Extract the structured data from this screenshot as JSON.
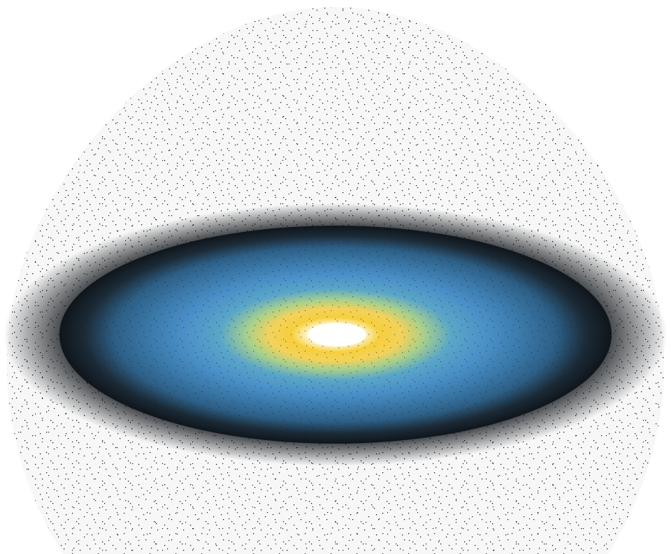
{
  "image": {
    "subject": "galaxy-disk-heatmap",
    "colors": {
      "background": "#ffffff",
      "dome_fill": "#f7f7f7",
      "speckle": "#1a1a1a",
      "outer_halo": "#0d1116",
      "disk_dark": "#1b2a36",
      "disk_mid": "#2d5f86",
      "disk_blue": "#4a90c8",
      "ring_green": "#a8d08c",
      "ring_yellow": "#f6cf3c",
      "core_white": "#ffffff"
    }
  }
}
